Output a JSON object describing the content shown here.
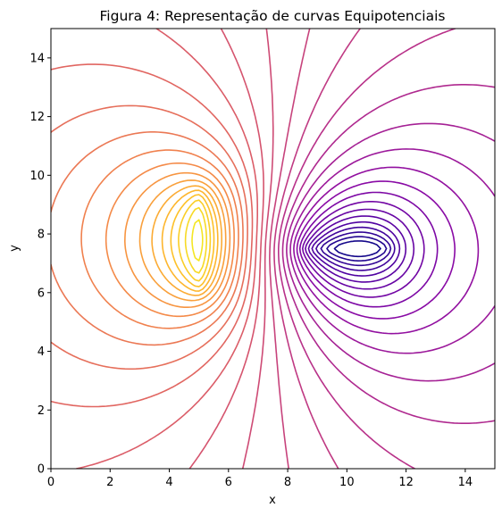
{
  "chart_data": {
    "type": "contour",
    "title": "Figura 4: Representação de curvas Equipotenciais",
    "xlabel": "x",
    "ylabel": "y",
    "xlim": [
      0,
      15
    ],
    "ylim": [
      0,
      15
    ],
    "xticks": [
      0,
      2,
      4,
      6,
      8,
      10,
      12,
      14
    ],
    "yticks": [
      0,
      2,
      4,
      6,
      8,
      10,
      12,
      14
    ],
    "grid": false,
    "legend": "none",
    "colormap": "plasma",
    "colormap_stops": [
      "#0d0887",
      "#5402a3",
      "#8b0aa5",
      "#b93289",
      "#db5c68",
      "#f48849",
      "#febd2a",
      "#f0f921"
    ],
    "sources": [
      {
        "name": "positive-plate",
        "x": 5.0,
        "y_from": 6.0,
        "y_to": 9.5,
        "sign": 1
      },
      {
        "name": "negative-plate",
        "x_from": 8.5,
        "x_to": 11.5,
        "y": 7.5,
        "sign": -1
      }
    ],
    "level_count": 34,
    "level_range": [
      -1,
      1
    ]
  }
}
